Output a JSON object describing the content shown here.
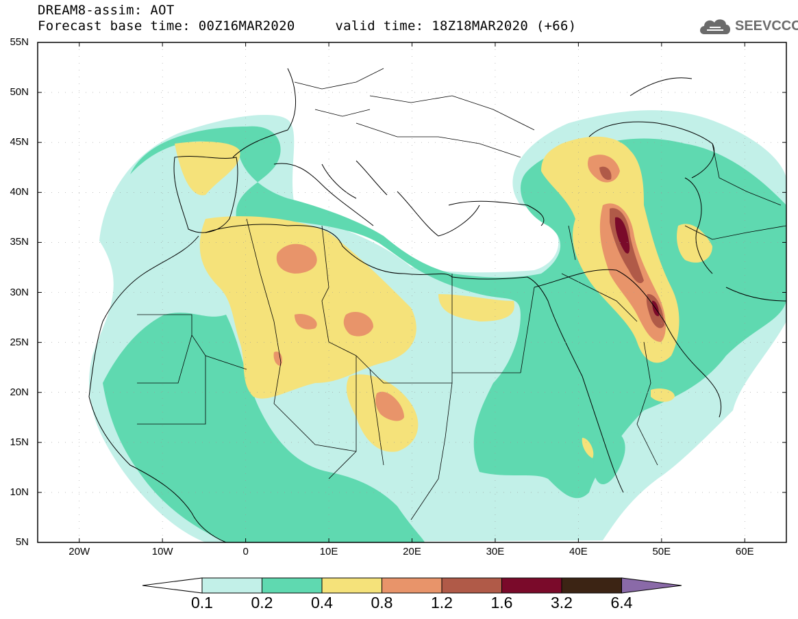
{
  "header": {
    "title_line1": "DREAM8-assim: AOT",
    "title_line2": "Forecast base time: 00Z16MAR2020     valid time: 18Z18MAR2020 (+66)"
  },
  "logo": {
    "text": "SEEVCCC",
    "icon": "cloud-icon"
  },
  "map": {
    "lat_ticks": [
      "55N",
      "50N",
      "45N",
      "40N",
      "35N",
      "30N",
      "25N",
      "20N",
      "15N",
      "10N",
      "5N"
    ],
    "lon_ticks": [
      "20W",
      "10W",
      "0",
      "10E",
      "20E",
      "30E",
      "40E",
      "50E",
      "60E"
    ],
    "extent": {
      "lon_min": -25,
      "lon_max": 65,
      "lat_min": 5,
      "lat_max": 55
    }
  },
  "colorbar": {
    "labels": [
      "0.1",
      "0.2",
      "0.4",
      "0.8",
      "1.2",
      "1.6",
      "3.2",
      "6.4"
    ],
    "colors": [
      "#ffffff",
      "#c2f0e8",
      "#5fd9b0",
      "#f5e27a",
      "#e8946a",
      "#b05a48",
      "#7a0a2a",
      "#3c2414",
      "#8a6aa8"
    ]
  }
}
